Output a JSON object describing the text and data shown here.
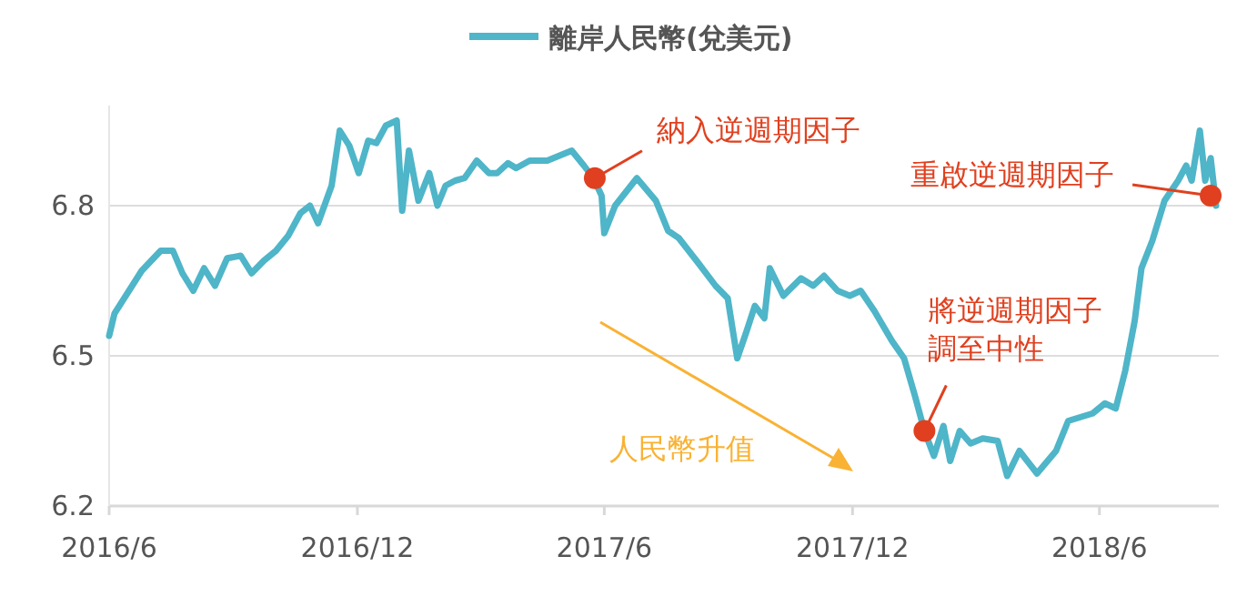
{
  "chart_data": {
    "type": "line",
    "legend": "top",
    "grid": "y",
    "marker": "none",
    "line_style": "solid",
    "xlim": [
      "2016-06-01",
      "2018-08-28"
    ],
    "xticks": [
      {
        "value": "2016-06-01",
        "label": "2016/6"
      },
      {
        "value": "2016-12-01",
        "label": "2016/12"
      },
      {
        "value": "2017-06-01",
        "label": "2017/6"
      },
      {
        "value": "2017-12-01",
        "label": "2017/12"
      },
      {
        "value": "2018-06-01",
        "label": "2018/6"
      }
    ],
    "ylim": [
      6.2,
      7.0
    ],
    "yticks": [
      6.2,
      6.5,
      6.8
    ],
    "series": [
      {
        "name": "離岸人民幣(兌美元)",
        "color": "#4fb5c8",
        "x": [
          "2016-06-01",
          "2016-06-05",
          "2016-06-25",
          "2016-07-09",
          "2016-07-18",
          "2016-07-25",
          "2016-08-02",
          "2016-08-10",
          "2016-08-18",
          "2016-08-27",
          "2016-09-06",
          "2016-09-14",
          "2016-09-23",
          "2016-10-02",
          "2016-10-11",
          "2016-10-20",
          "2016-10-27",
          "2016-11-02",
          "2016-11-12",
          "2016-11-18",
          "2016-11-25",
          "2016-12-02",
          "2016-12-09",
          "2016-12-15",
          "2016-12-22",
          "2016-12-30",
          "2017-01-03",
          "2017-01-08",
          "2017-01-15",
          "2017-01-23",
          "2017-01-29",
          "2017-02-04",
          "2017-02-11",
          "2017-02-18",
          "2017-02-27",
          "2017-03-08",
          "2017-03-14",
          "2017-03-22",
          "2017-03-28",
          "2017-04-07",
          "2017-04-20",
          "2017-05-08",
          "2017-05-17",
          "2017-05-24",
          "2017-05-30",
          "2017-06-01",
          "2017-06-09",
          "2017-06-25",
          "2017-07-09",
          "2017-07-18",
          "2017-07-26",
          "2017-08-08",
          "2017-08-22",
          "2017-08-31",
          "2017-09-07",
          "2017-09-14",
          "2017-09-20",
          "2017-09-27",
          "2017-10-01",
          "2017-10-11",
          "2017-10-24",
          "2017-11-02",
          "2017-11-10",
          "2017-11-20",
          "2017-11-29",
          "2017-12-07",
          "2017-12-17",
          "2017-12-30",
          "2018-01-08",
          "2018-01-16",
          "2018-01-23",
          "2018-01-30",
          "2018-02-06",
          "2018-02-11",
          "2018-02-18",
          "2018-02-26",
          "2018-03-07",
          "2018-03-18",
          "2018-03-25",
          "2018-04-03",
          "2018-04-16",
          "2018-04-30",
          "2018-05-09",
          "2018-05-27",
          "2018-06-05",
          "2018-06-13",
          "2018-06-20",
          "2018-06-27",
          "2018-07-02",
          "2018-07-10",
          "2018-07-19",
          "2018-07-29",
          "2018-08-04",
          "2018-08-08",
          "2018-08-14",
          "2018-08-18",
          "2018-08-22",
          "2018-08-26"
        ],
        "values": [
          6.54,
          6.585,
          6.67,
          6.71,
          6.71,
          6.665,
          6.63,
          6.675,
          6.64,
          6.695,
          6.7,
          6.665,
          6.69,
          6.71,
          6.74,
          6.785,
          6.8,
          6.765,
          6.84,
          6.95,
          6.92,
          6.865,
          6.93,
          6.925,
          6.96,
          6.97,
          6.79,
          6.91,
          6.81,
          6.865,
          6.8,
          6.84,
          6.85,
          6.855,
          6.89,
          6.865,
          6.865,
          6.885,
          6.875,
          6.89,
          6.89,
          6.91,
          6.88,
          6.855,
          6.82,
          6.745,
          6.8,
          6.855,
          6.81,
          6.75,
          6.735,
          6.69,
          6.64,
          6.615,
          6.495,
          6.55,
          6.6,
          6.575,
          6.675,
          6.62,
          6.655,
          6.64,
          6.66,
          6.63,
          6.62,
          6.63,
          6.59,
          6.53,
          6.495,
          6.42,
          6.35,
          6.3,
          6.36,
          6.29,
          6.35,
          6.325,
          6.335,
          6.33,
          6.26,
          6.31,
          6.265,
          6.31,
          6.37,
          6.385,
          6.405,
          6.395,
          6.47,
          6.57,
          6.675,
          6.73,
          6.81,
          6.85,
          6.88,
          6.85,
          6.95,
          6.85,
          6.895,
          6.8
        ]
      }
    ],
    "annotations": [
      {
        "text": "納入逆週期因子",
        "x": "2017-05-25",
        "y": 6.855
      },
      {
        "text": "將逆週期因子調至中性",
        "x": "2018-01-23",
        "y": 6.35
      },
      {
        "text": "重啟逆週期因子",
        "x": "2018-08-22",
        "y": 6.82
      },
      "人民幣升值"
    ]
  }
}
